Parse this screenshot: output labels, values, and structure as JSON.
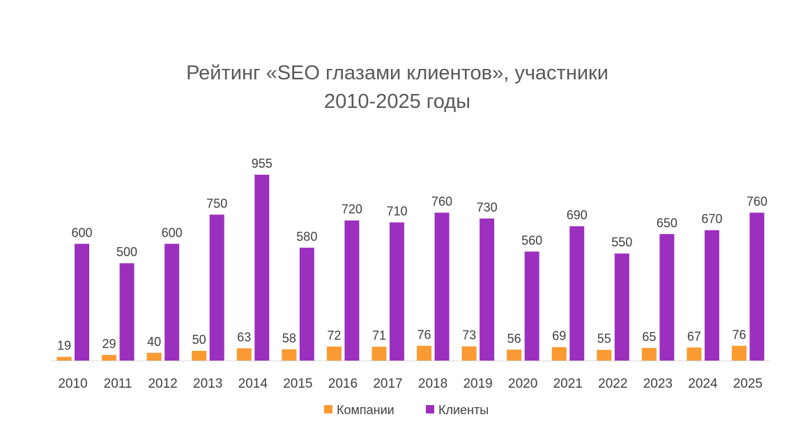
{
  "chart_data": {
    "type": "bar",
    "title_lines": [
      "Рейтинг «SEO глазами клиентов», участники",
      "2010-2025 годы"
    ],
    "xlabel": "",
    "ylabel": "",
    "categories": [
      "2010",
      "2011",
      "2012",
      "2013",
      "2014",
      "2015",
      "2016",
      "2017",
      "2018",
      "2019",
      "2020",
      "2021",
      "2022",
      "2023",
      "2024",
      "2025"
    ],
    "series": [
      {
        "name": "Компании",
        "color": "#F99A33",
        "values": [
          19,
          29,
          40,
          50,
          63,
          58,
          72,
          71,
          76,
          73,
          56,
          69,
          55,
          65,
          67,
          76
        ]
      },
      {
        "name": "Клиенты",
        "color": "#9B2FBE",
        "values": [
          600,
          500,
          600,
          750,
          955,
          580,
          720,
          710,
          760,
          730,
          560,
          690,
          550,
          650,
          670,
          760
        ]
      }
    ],
    "ylim": [
      0,
      955
    ],
    "grid": false,
    "data_labels": true,
    "legend_position": "bottom"
  }
}
